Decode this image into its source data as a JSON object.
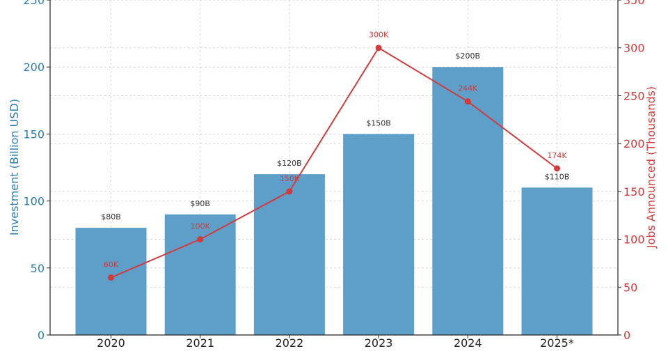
{
  "chart_data": {
    "type": "bar",
    "categories": [
      "2020",
      "2021",
      "2022",
      "2023",
      "2024",
      "2025*"
    ],
    "series": [
      {
        "type": "bar",
        "axis": "left",
        "values": [
          80,
          90,
          120,
          150,
          200,
          110
        ],
        "labels": [
          "$80B",
          "$90B",
          "$120B",
          "$150B",
          "$200B",
          "$110B"
        ],
        "color": "#5e9fca"
      },
      {
        "type": "line",
        "axis": "right",
        "values": [
          60,
          100,
          150,
          300,
          244,
          174
        ],
        "labels": [
          "60K",
          "100K",
          "150K",
          "300K",
          "244K",
          "174K"
        ],
        "color": "#d03c3c"
      }
    ],
    "ylabel": "Investment (Billion USD)",
    "y2label": "Jobs Announced (Thousands)",
    "ylim": [
      0,
      250
    ],
    "y2lim": [
      0,
      350
    ],
    "yticks": [
      "0",
      "50",
      "100",
      "150",
      "200",
      "250"
    ],
    "y2ticks": [
      "0",
      "50",
      "100",
      "150",
      "200",
      "250",
      "300",
      "350"
    ],
    "grid": true,
    "colors": {
      "left_axis": "#2a7fb0",
      "right_axis": "#d03c3c",
      "grid": "#cccccc"
    }
  }
}
